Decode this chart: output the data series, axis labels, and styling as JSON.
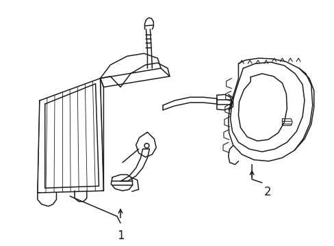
{
  "background_color": "#ffffff",
  "line_color": "#1a1a1a",
  "line_width": 1.1,
  "fig_width": 4.89,
  "fig_height": 3.6,
  "dpi": 100,
  "label1": "1",
  "label2": "2"
}
